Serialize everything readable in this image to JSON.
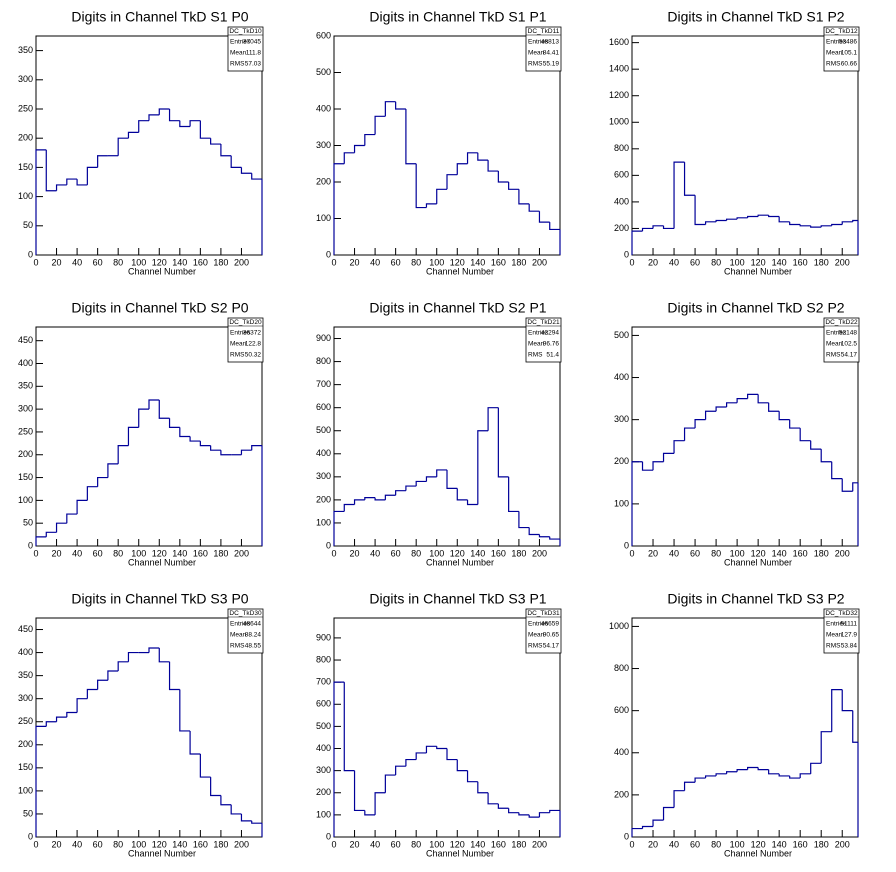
{
  "chart_data": [
    {
      "type": "histogram",
      "title": "Digits in Channel TkD S1 P0",
      "x_label": "Channel Number",
      "color": "#000099",
      "bins": [
        0,
        10,
        20,
        30,
        40,
        50,
        60,
        70,
        80,
        90,
        100,
        110,
        120,
        130,
        140,
        150,
        160,
        170,
        180,
        190,
        200,
        210,
        220
      ],
      "values": [
        180,
        110,
        120,
        130,
        120,
        150,
        170,
        170,
        200,
        210,
        230,
        240,
        250,
        230,
        220,
        230,
        200,
        190,
        170,
        150,
        140,
        130
      ],
      "xlim": [
        0,
        220
      ],
      "xticks": [
        0,
        20,
        40,
        60,
        80,
        100,
        120,
        140,
        160,
        180,
        200
      ],
      "ylim": [
        0,
        375
      ],
      "yticks": [
        0,
        50,
        100,
        150,
        200,
        250,
        300,
        350
      ],
      "stats": {
        "name": "DC_TkD10",
        "rows": [
          {
            "label": "Entries",
            "value": 37045
          },
          {
            "label": "Mean",
            "value": 111.8
          },
          {
            "label": "RMS",
            "value": 57.03
          }
        ]
      }
    },
    {
      "type": "histogram",
      "title": "Digits in Channel TkD S1 P1",
      "x_label": "Channel Number",
      "color": "#000099",
      "bins": [
        0,
        10,
        20,
        30,
        40,
        50,
        60,
        70,
        80,
        90,
        100,
        110,
        120,
        130,
        140,
        150,
        160,
        170,
        180,
        190,
        200,
        210,
        220
      ],
      "values": [
        250,
        280,
        300,
        330,
        380,
        420,
        400,
        250,
        130,
        140,
        180,
        220,
        250,
        280,
        260,
        230,
        200,
        180,
        140,
        120,
        90,
        70
      ],
      "xlim": [
        0,
        220
      ],
      "xticks": [
        0,
        20,
        40,
        60,
        80,
        100,
        120,
        140,
        160,
        180,
        200
      ],
      "ylim": [
        0,
        600
      ],
      "yticks": [
        0,
        100,
        200,
        300,
        400,
        500,
        600
      ],
      "stats": {
        "name": "DC_TkD11",
        "rows": [
          {
            "label": "Entries",
            "value": 48813
          },
          {
            "label": "Mean",
            "value": 84.41
          },
          {
            "label": "RMS",
            "value": 55.19
          }
        ]
      }
    },
    {
      "type": "histogram",
      "title": "Digits in Channel TkD S1 P2",
      "x_label": "Channel Number",
      "color": "#000099",
      "bins": [
        0,
        10,
        20,
        30,
        40,
        50,
        60,
        70,
        80,
        90,
        100,
        110,
        120,
        130,
        140,
        150,
        160,
        170,
        180,
        190,
        200,
        210,
        215
      ],
      "values": [
        180,
        200,
        220,
        200,
        700,
        450,
        230,
        250,
        260,
        270,
        280,
        290,
        300,
        290,
        250,
        230,
        220,
        210,
        220,
        230,
        250,
        260
      ],
      "xlim": [
        0,
        215
      ],
      "xticks": [
        0,
        20,
        40,
        60,
        80,
        100,
        120,
        140,
        160,
        180,
        200
      ],
      "ylim": [
        0,
        1650
      ],
      "yticks": [
        0,
        200,
        400,
        600,
        800,
        1000,
        1200,
        1400,
        1600
      ],
      "stats": {
        "name": "DC_TkD12",
        "rows": [
          {
            "label": "Entries",
            "value": 53486
          },
          {
            "label": "Mean",
            "value": 105.1
          },
          {
            "label": "RMS",
            "value": 60.66
          }
        ]
      }
    },
    {
      "type": "histogram",
      "title": "Digits in Channel TkD S2 P0",
      "x_label": "Channel Number",
      "color": "#000099",
      "bins": [
        0,
        10,
        20,
        30,
        40,
        50,
        60,
        70,
        80,
        90,
        100,
        110,
        120,
        130,
        140,
        150,
        160,
        170,
        180,
        190,
        200,
        210,
        220
      ],
      "values": [
        20,
        30,
        50,
        70,
        100,
        130,
        150,
        180,
        220,
        260,
        300,
        320,
        280,
        260,
        240,
        230,
        220,
        210,
        200,
        200,
        210,
        220
      ],
      "xlim": [
        0,
        220
      ],
      "xticks": [
        0,
        20,
        40,
        60,
        80,
        100,
        120,
        140,
        160,
        180,
        200
      ],
      "ylim": [
        0,
        480
      ],
      "yticks": [
        0,
        50,
        100,
        150,
        200,
        250,
        300,
        350,
        400,
        450
      ],
      "stats": {
        "name": "DC_TkD20",
        "rows": [
          {
            "label": "Entries",
            "value": 36372
          },
          {
            "label": "Mean",
            "value": 122.8
          },
          {
            "label": "RMS",
            "value": 50.32
          }
        ]
      }
    },
    {
      "type": "histogram",
      "title": "Digits in Channel TkD S2 P1",
      "x_label": "Channel Number",
      "color": "#000099",
      "bins": [
        0,
        10,
        20,
        30,
        40,
        50,
        60,
        70,
        80,
        90,
        100,
        110,
        120,
        130,
        140,
        150,
        160,
        170,
        180,
        190,
        200,
        210,
        220
      ],
      "values": [
        150,
        180,
        200,
        210,
        200,
        220,
        240,
        260,
        280,
        300,
        330,
        250,
        200,
        180,
        500,
        600,
        300,
        150,
        80,
        50,
        40,
        30
      ],
      "xlim": [
        0,
        220
      ],
      "xticks": [
        0,
        20,
        40,
        60,
        80,
        100,
        120,
        140,
        160,
        180,
        200
      ],
      "ylim": [
        0,
        950
      ],
      "yticks": [
        0,
        100,
        200,
        300,
        400,
        500,
        600,
        700,
        800,
        900
      ],
      "stats": {
        "name": "DC_TkD21",
        "rows": [
          {
            "label": "Entries",
            "value": 42294
          },
          {
            "label": "Mean",
            "value": 96.76
          },
          {
            "label": "RMS",
            "value": 51.4
          }
        ]
      }
    },
    {
      "type": "histogram",
      "title": "Digits in Channel TkD S2 P2",
      "x_label": "Channel Number",
      "color": "#000099",
      "bins": [
        0,
        10,
        20,
        30,
        40,
        50,
        60,
        70,
        80,
        90,
        100,
        110,
        120,
        130,
        140,
        150,
        160,
        170,
        180,
        190,
        200,
        210,
        215
      ],
      "values": [
        200,
        180,
        200,
        220,
        250,
        280,
        300,
        320,
        330,
        340,
        350,
        360,
        340,
        320,
        300,
        280,
        250,
        230,
        200,
        160,
        130,
        150
      ],
      "xlim": [
        0,
        215
      ],
      "xticks": [
        0,
        20,
        40,
        60,
        80,
        100,
        120,
        140,
        160,
        180,
        200
      ],
      "ylim": [
        0,
        520
      ],
      "yticks": [
        0,
        100,
        200,
        300,
        400,
        500
      ],
      "stats": {
        "name": "DC_TkD22",
        "rows": [
          {
            "label": "Entries",
            "value": 52148
          },
          {
            "label": "Mean",
            "value": 102.5
          },
          {
            "label": "RMS",
            "value": 54.17
          }
        ]
      }
    },
    {
      "type": "histogram",
      "title": "Digits in Channel TkD S3 P0",
      "x_label": "Channel Number",
      "color": "#000099",
      "bins": [
        0,
        10,
        20,
        30,
        40,
        50,
        60,
        70,
        80,
        90,
        100,
        110,
        120,
        130,
        140,
        150,
        160,
        170,
        180,
        190,
        200,
        210,
        220
      ],
      "values": [
        240,
        250,
        260,
        270,
        300,
        320,
        340,
        360,
        380,
        400,
        400,
        410,
        380,
        320,
        230,
        180,
        130,
        90,
        70,
        50,
        35,
        30
      ],
      "xlim": [
        0,
        220
      ],
      "xticks": [
        0,
        20,
        40,
        60,
        80,
        100,
        120,
        140,
        160,
        180,
        200
      ],
      "ylim": [
        0,
        475
      ],
      "yticks": [
        0,
        50,
        100,
        150,
        200,
        250,
        300,
        350,
        400,
        450
      ],
      "stats": {
        "name": "DC_TkD30",
        "rows": [
          {
            "label": "Entries",
            "value": 48644
          },
          {
            "label": "Mean",
            "value": 88.24
          },
          {
            "label": "RMS",
            "value": 48.55
          }
        ]
      }
    },
    {
      "type": "histogram",
      "title": "Digits in Channel TkD S3 P1",
      "x_label": "Channel Number",
      "color": "#000099",
      "bins": [
        0,
        10,
        20,
        30,
        40,
        50,
        60,
        70,
        80,
        90,
        100,
        110,
        120,
        130,
        140,
        150,
        160,
        170,
        180,
        190,
        200,
        210,
        220
      ],
      "values": [
        700,
        300,
        120,
        100,
        200,
        280,
        320,
        350,
        380,
        410,
        400,
        350,
        300,
        250,
        200,
        150,
        130,
        110,
        100,
        90,
        110,
        120
      ],
      "xlim": [
        0,
        220
      ],
      "xticks": [
        0,
        20,
        40,
        60,
        80,
        100,
        120,
        140,
        160,
        180,
        200
      ],
      "ylim": [
        0,
        990
      ],
      "yticks": [
        0,
        100,
        200,
        300,
        400,
        500,
        600,
        700,
        800,
        900
      ],
      "stats": {
        "name": "DC_TkD31",
        "rows": [
          {
            "label": "Entries",
            "value": 46659
          },
          {
            "label": "Mean",
            "value": 90.65
          },
          {
            "label": "RMS",
            "value": 54.17
          }
        ]
      }
    },
    {
      "type": "histogram",
      "title": "Digits in Channel TkD S3 P2",
      "x_label": "Channel Number",
      "color": "#000099",
      "bins": [
        0,
        10,
        20,
        30,
        40,
        50,
        60,
        70,
        80,
        90,
        100,
        110,
        120,
        130,
        140,
        150,
        160,
        170,
        180,
        190,
        200,
        210,
        215
      ],
      "values": [
        40,
        50,
        80,
        140,
        220,
        260,
        280,
        290,
        300,
        310,
        320,
        330,
        320,
        300,
        290,
        280,
        300,
        350,
        500,
        700,
        600,
        450
      ],
      "xlim": [
        0,
        215
      ],
      "xticks": [
        0,
        20,
        40,
        60,
        80,
        100,
        120,
        140,
        160,
        180,
        200
      ],
      "ylim": [
        0,
        1040
      ],
      "yticks": [
        0,
        200,
        400,
        600,
        800,
        1000
      ],
      "stats": {
        "name": "DC_TkD32",
        "rows": [
          {
            "label": "Entries",
            "value": 51111
          },
          {
            "label": "Mean",
            "value": 127.9
          },
          {
            "label": "RMS",
            "value": 53.84
          }
        ]
      }
    }
  ]
}
